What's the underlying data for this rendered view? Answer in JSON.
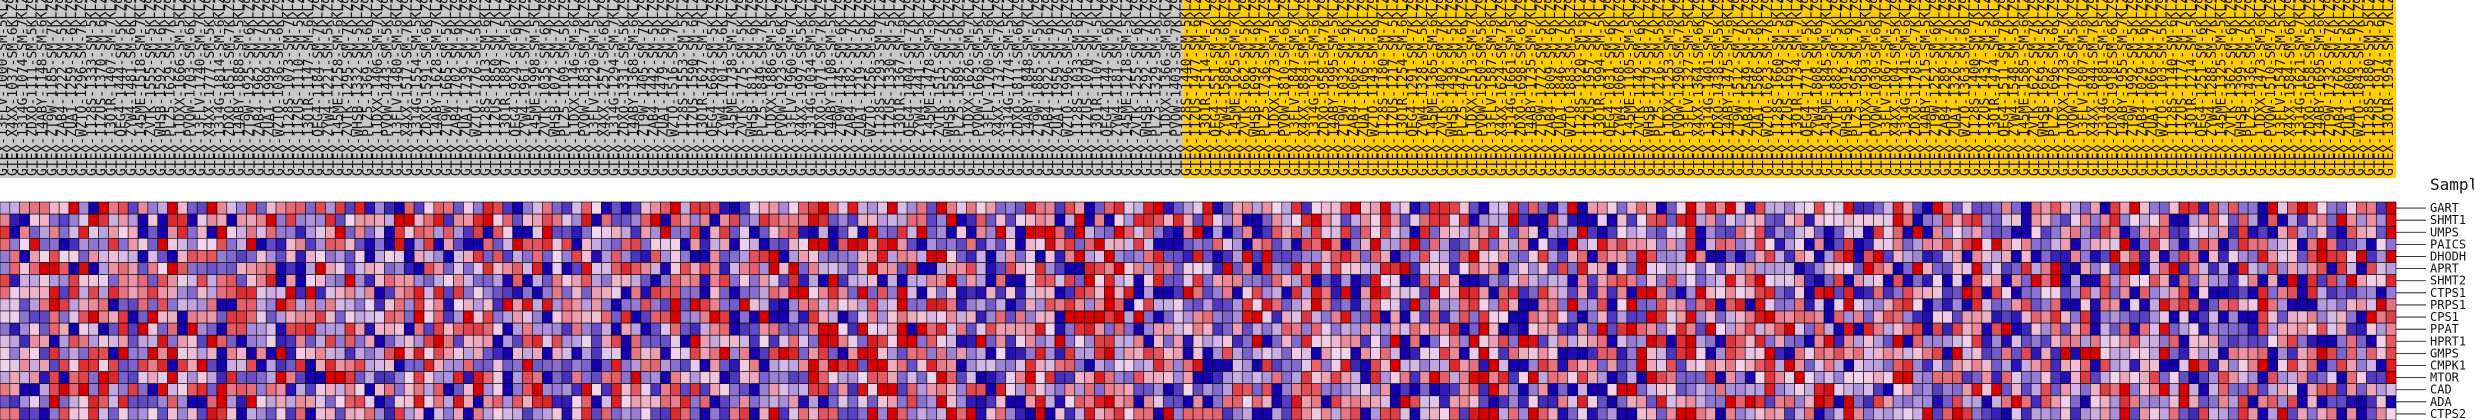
{
  "chart_data": {
    "type": "heatmap",
    "row_header": "SampleName",
    "genes": [
      "GART",
      "SHMT1",
      "UMPS",
      "PAICS",
      "DHODH",
      "APRT",
      "SHMT2",
      "CTPS1",
      "PRPS1",
      "CPS1",
      "PPAT",
      "HPRT1",
      "GMPS",
      "CMPK1",
      "MTOR",
      "CAD",
      "ADA",
      "CTPS2"
    ],
    "sample_groups": [
      {
        "name": "grey",
        "color": "#c8c8c8",
        "count": 120
      },
      {
        "name": "yellow",
        "color": "#ffcc00",
        "count": 123
      }
    ],
    "sample_label_prefix": "GTEX-",
    "sample_label_examples": [
      "GTEX-13FLV-1126-SM-5KLZ9",
      "GTEX-ZDXO-1526-SM-4WKHY",
      "GTEX-ZAB4-1826-SM-5GIIT",
      "GTEX-1128S-1026-SM-5N9D9"
    ],
    "color_scale": {
      "low": "#1500b0",
      "mid": "#f3d6ee",
      "high": "#d80000"
    },
    "value_range": [
      -3,
      3
    ],
    "values_note_encoding": "z-score per cell"
  },
  "legend": {
    "title": "SampleName"
  }
}
